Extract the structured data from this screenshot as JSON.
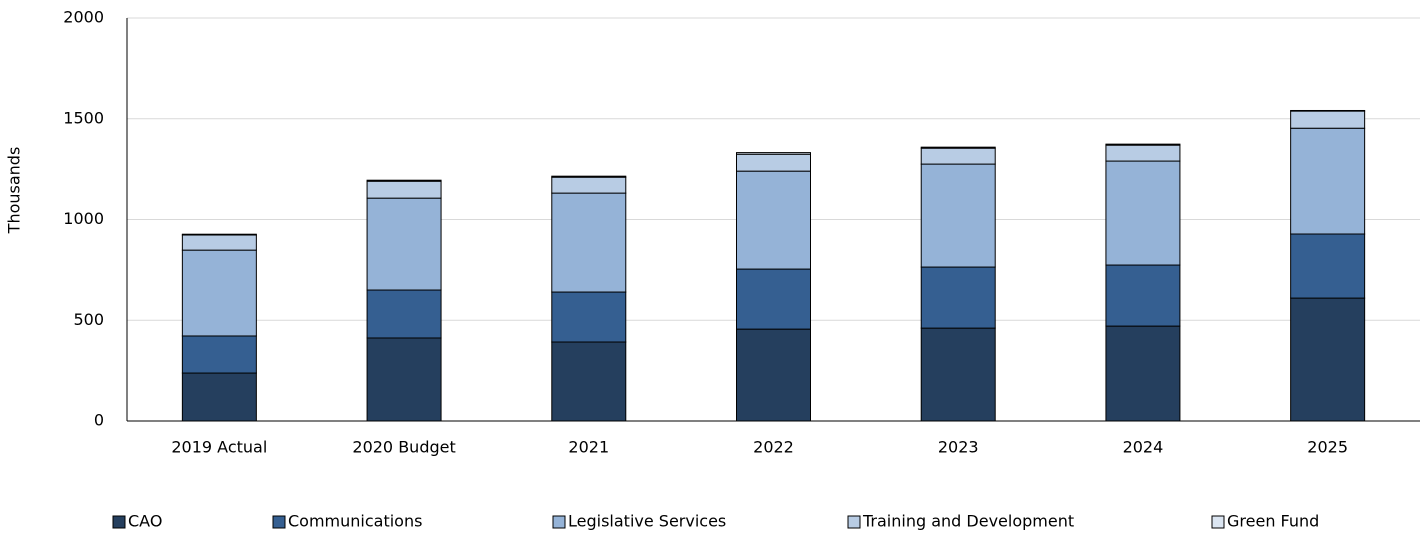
{
  "chart_data": {
    "type": "stacked_bar",
    "y_axis_label": "Thousands",
    "categories": [
      "2019 Actual",
      "2020 Budget",
      "2021",
      "2022",
      "2023",
      "2024",
      "2025"
    ],
    "series": [
      {
        "name": "CAO",
        "color": "#253f5e",
        "values": [
          238,
          412,
          392,
          456,
          461,
          471,
          610
        ]
      },
      {
        "name": "Communications",
        "color": "#355f91",
        "values": [
          184,
          238,
          248,
          298,
          303,
          303,
          318
        ]
      },
      {
        "name": "Legislative Services",
        "color": "#95b3d7",
        "values": [
          426,
          456,
          491,
          486,
          511,
          516,
          525
        ]
      },
      {
        "name": "Training and Development",
        "color": "#b8cce4",
        "values": [
          75,
          84,
          79,
          84,
          79,
          79,
          85
        ]
      },
      {
        "name": "Green Fund",
        "color": "#dbe5f1",
        "values": [
          4,
          5,
          5,
          8,
          5,
          5,
          3
        ]
      }
    ],
    "ylim": [
      0,
      2000
    ],
    "yticks": [
      0,
      500,
      1000,
      1500,
      2000
    ],
    "grid": true
  }
}
